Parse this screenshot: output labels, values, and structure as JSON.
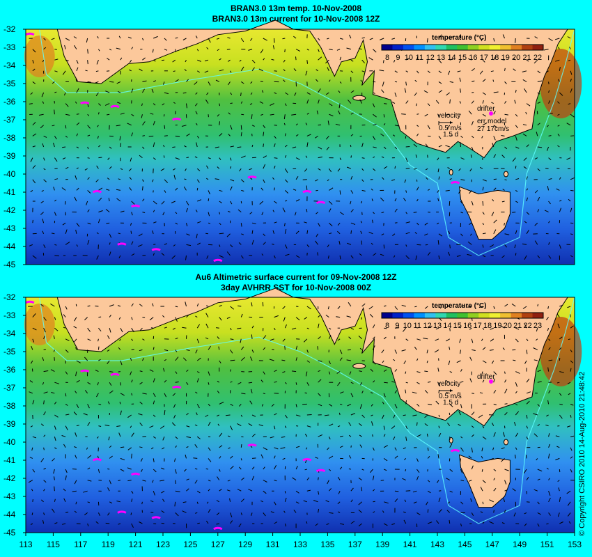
{
  "panels": [
    {
      "title_line1": "BRAN3.0 13m temp. 10-Nov-2008",
      "title_line2": "BRAN3.0 13m current for 10-Nov-2008 12Z",
      "colorbar_title": "temperature (°C)",
      "colorbar_ticks": [
        "8",
        "9",
        "10",
        "11",
        "12",
        "13",
        "14",
        "15",
        "16",
        "17",
        "18",
        "19",
        "20",
        "21",
        "22"
      ],
      "legend": {
        "velocity_label": "velocity",
        "velocity_scale": "0.5 m/s",
        "velocity_days": "1.5 d",
        "drifter_label": "drifter",
        "err_label": "err model",
        "err_value": "27 17cm/s"
      }
    },
    {
      "title_line1": "Au6 Altimetric surface current for 09-Nov-2008 12Z",
      "title_line2": "3day AVHRR SST for 10-Nov-2008 00Z",
      "colorbar_title": "temperature (°C)",
      "colorbar_ticks": [
        "8",
        "9",
        "10",
        "11",
        "12",
        "13",
        "14",
        "15",
        "16",
        "17",
        "18",
        "19",
        "20",
        "21",
        "22",
        "23"
      ],
      "legend": {
        "velocity_label": "velocity",
        "velocity_scale": "0.5 m/s",
        "velocity_days": "1.5 d",
        "drifter_label": "drifter"
      }
    }
  ],
  "lat_labels": [
    "-32",
    "-33",
    "-34",
    "-35",
    "-36",
    "-37",
    "-38",
    "-39",
    "-40",
    "-41",
    "-42",
    "-43",
    "-44",
    "-45"
  ],
  "lon_labels": [
    "113",
    "115",
    "117",
    "119",
    "121",
    "123",
    "125",
    "127",
    "129",
    "131",
    "133",
    "135",
    "137",
    "139",
    "141",
    "143",
    "145",
    "147",
    "149",
    "151",
    "153"
  ],
  "copyright": "© Copyright CSIRO 2010   14-Aug-2010 21:48:42",
  "colors": {
    "background": "#00ffff",
    "land": "#fcc89b",
    "drifter": "#ff00ff",
    "ramp": [
      "#00008b",
      "#0020c8",
      "#0050f0",
      "#0090ff",
      "#30c0f0",
      "#30d8b0",
      "#20c060",
      "#40c030",
      "#90d020",
      "#d0e020",
      "#f0f030",
      "#f0c030",
      "#e08020",
      "#b04010",
      "#902010"
    ]
  }
}
